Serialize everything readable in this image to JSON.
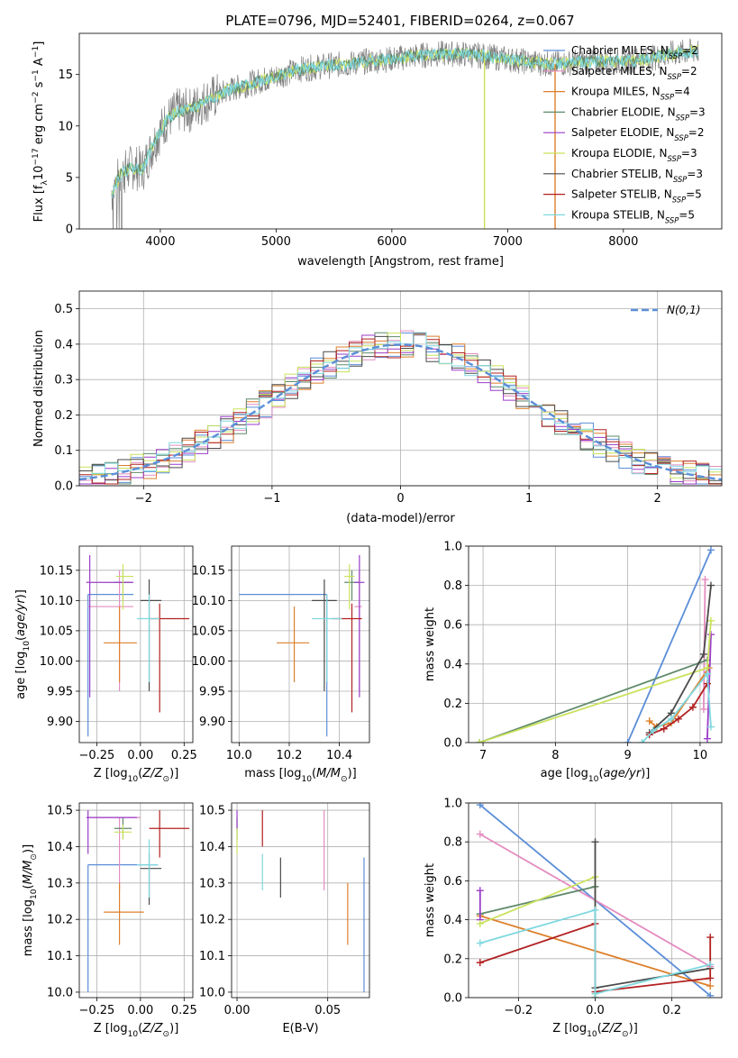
{
  "figure_title": "PLATE=0796, MJD=52401, FIBERID=0264, z=0.067",
  "colors": {
    "Chabrier MILES": "#5b8ed8",
    "Salpeter MILES": "#e48cc0",
    "Kroupa MILES": "#dd7f2b",
    "Chabrier ELODIE": "#5f8a6a",
    "Salpeter ELODIE": "#9a3cc8",
    "Kroupa ELODIE": "#c9e25c",
    "Chabrier STELIB": "#4a4a4a",
    "Salpeter STELIB": "#b22020",
    "Kroupa STELIB": "#7ed8df",
    "data": "#808080",
    "normal": "#5b8ed8"
  },
  "chart_data": [
    {
      "id": "spectrum",
      "type": "line",
      "xlabel": "wavelength [Angstrom, rest frame]",
      "ylabel": "Flux [f_λ 10^-17 erg cm^-2 s^-1 A^-1]",
      "xlim": [
        3300,
        8850
      ],
      "ylim": [
        0,
        19
      ],
      "xticks": [
        4000,
        5000,
        6000,
        7000,
        8000
      ],
      "yticks": [
        0,
        5,
        10,
        15
      ],
      "legend_position": "top-right",
      "legend": [
        {
          "series": "Chabrier MILES",
          "label": "Chabrier MILES, N",
          "sub": "SSP",
          "eq": "=2"
        },
        {
          "series": "Salpeter MILES",
          "label": "Salpeter MILES, N",
          "sub": "SSP",
          "eq": "=2"
        },
        {
          "series": "Kroupa MILES",
          "label": "Kroupa MILES, N",
          "sub": "SSP",
          "eq": "=4"
        },
        {
          "series": "Chabrier ELODIE",
          "label": "Chabrier ELODIE, N",
          "sub": "SSP",
          "eq": "=3"
        },
        {
          "series": "Salpeter ELODIE",
          "label": "Salpeter ELODIE, N",
          "sub": "SSP",
          "eq": "=2"
        },
        {
          "series": "Kroupa ELODIE",
          "label": "Kroupa ELODIE, N",
          "sub": "SSP",
          "eq": "=3"
        },
        {
          "series": "Chabrier STELIB",
          "label": "Chabrier STELIB, N",
          "sub": "SSP",
          "eq": "=3"
        },
        {
          "series": "Salpeter STELIB",
          "label": "Salpeter STELIB, N",
          "sub": "SSP",
          "eq": "=5"
        },
        {
          "series": "Kroupa STELIB",
          "label": "Kroupa STELIB, N",
          "sub": "SSP",
          "eq": "=5"
        }
      ],
      "continuum": [
        [
          3580,
          3.5
        ],
        [
          3650,
          5.2
        ],
        [
          3750,
          6.0
        ],
        [
          3850,
          5.8
        ],
        [
          3950,
          8.5
        ],
        [
          4050,
          10.5
        ],
        [
          4150,
          11.5
        ],
        [
          4250,
          11.5
        ],
        [
          4400,
          12.5
        ],
        [
          4600,
          13.5
        ],
        [
          4800,
          14.2
        ],
        [
          5000,
          14.8
        ],
        [
          5200,
          15.5
        ],
        [
          5400,
          15.8
        ],
        [
          5600,
          16.0
        ],
        [
          5800,
          16.3
        ],
        [
          6000,
          16.5
        ],
        [
          6200,
          16.8
        ],
        [
          6400,
          17.0
        ],
        [
          6600,
          17.0
        ],
        [
          6800,
          16.8
        ],
        [
          7000,
          16.5
        ],
        [
          7200,
          16.2
        ],
        [
          7400,
          16.0
        ],
        [
          7600,
          16.2
        ],
        [
          7800,
          16.3
        ],
        [
          8000,
          16.3
        ],
        [
          8200,
          16.5
        ],
        [
          8400,
          17.0
        ],
        [
          8650,
          17.3
        ]
      ]
    },
    {
      "id": "residuals",
      "type": "histogram",
      "xlabel": "(data-model)/error",
      "ylabel": "Normed distribution",
      "xlim": [
        -2.5,
        2.5
      ],
      "ylim": [
        0,
        0.55
      ],
      "xticks": [
        -2,
        -1,
        0,
        1,
        2
      ],
      "yticks": [
        0.0,
        0.1,
        0.2,
        0.3,
        0.4,
        0.5
      ],
      "bin_width": 0.1,
      "legend_position": "top-right",
      "legend_label": "N(0,1)",
      "seeds": [
        1,
        2,
        3,
        4,
        5,
        6,
        7,
        8,
        9
      ]
    },
    {
      "id": "age_vs_Z",
      "type": "errorbar",
      "xlabel": "Z [log10(Z/Z☉)]",
      "ylabel": "age [log10(age/yr)]",
      "xlim": [
        -0.35,
        0.3
      ],
      "ylim": [
        9.865,
        10.19
      ],
      "xticks": [
        -0.25,
        0.0,
        0.25
      ],
      "xticklabels": [
        "−0.25",
        "0.00",
        "0.25"
      ],
      "yticks": [
        9.9,
        9.95,
        10.0,
        10.05,
        10.1,
        10.15
      ],
      "points": [
        {
          "series": "Chabrier MILES",
          "x": -0.3,
          "y": 10.11,
          "xlo": -0.3,
          "xhi": -0.04,
          "ylo": 9.875,
          "yhi": 10.11
        },
        {
          "series": "Salpeter MILES",
          "x": -0.12,
          "y": 10.09,
          "xlo": -0.3,
          "xhi": -0.04,
          "ylo": 9.95,
          "yhi": 10.15
        },
        {
          "series": "Kroupa MILES",
          "x": -0.12,
          "y": 10.03,
          "xlo": -0.21,
          "xhi": -0.02,
          "ylo": 9.965,
          "yhi": 10.09
        },
        {
          "series": "Chabrier ELODIE",
          "x": -0.1,
          "y": 10.13,
          "xlo": -0.15,
          "xhi": -0.05,
          "ylo": 10.1,
          "yhi": 10.15
        },
        {
          "series": "Salpeter ELODIE",
          "x": -0.29,
          "y": 10.13,
          "xlo": -0.31,
          "xhi": -0.04,
          "ylo": 9.94,
          "yhi": 10.175
        },
        {
          "series": "Kroupa ELODIE",
          "x": -0.1,
          "y": 10.14,
          "xlo": -0.14,
          "xhi": -0.04,
          "ylo": 10.085,
          "yhi": 10.16
        },
        {
          "series": "Chabrier STELIB",
          "x": 0.05,
          "y": 10.1,
          "xlo": 0.0,
          "xhi": 0.12,
          "ylo": 9.95,
          "yhi": 10.135
        },
        {
          "series": "Salpeter STELIB",
          "x": 0.11,
          "y": 10.07,
          "xlo": 0.05,
          "xhi": 0.28,
          "ylo": 9.915,
          "yhi": 10.095
        },
        {
          "series": "Kroupa STELIB",
          "x": 0.05,
          "y": 10.07,
          "xlo": -0.02,
          "xhi": 0.11,
          "ylo": 9.965,
          "yhi": 10.11
        }
      ]
    },
    {
      "id": "age_vs_mass",
      "type": "errorbar",
      "xlabel": "mass [log10(M/M☉)]",
      "ylabel": "",
      "xlim": [
        9.97,
        10.52
      ],
      "ylim": [
        9.865,
        10.19
      ],
      "xticks": [
        10.0,
        10.2,
        10.4
      ],
      "xticklabels": [
        "10.0",
        "10.2",
        "10.4"
      ],
      "yticks": [
        9.9,
        9.95,
        10.0,
        10.05,
        10.1,
        10.15
      ],
      "points": [
        {
          "series": "Chabrier MILES",
          "x": 10.35,
          "y": 10.11,
          "xlo": 10.0,
          "xhi": 10.35,
          "ylo": 9.875,
          "yhi": 10.11
        },
        {
          "series": "Salpeter MILES",
          "x": 10.48,
          "y": 10.09,
          "xlo": 10.46,
          "xhi": 10.49,
          "ylo": 9.95,
          "yhi": 10.15
        },
        {
          "series": "Kroupa MILES",
          "x": 10.22,
          "y": 10.03,
          "xlo": 10.15,
          "xhi": 10.28,
          "ylo": 9.965,
          "yhi": 10.09
        },
        {
          "series": "Chabrier ELODIE",
          "x": 10.45,
          "y": 10.13,
          "xlo": 10.42,
          "xhi": 10.48,
          "ylo": 10.1,
          "yhi": 10.15
        },
        {
          "series": "Salpeter ELODIE",
          "x": 10.48,
          "y": 10.13,
          "xlo": 10.46,
          "xhi": 10.5,
          "ylo": 9.94,
          "yhi": 10.175
        },
        {
          "series": "Kroupa ELODIE",
          "x": 10.44,
          "y": 10.14,
          "xlo": 10.42,
          "xhi": 10.46,
          "ylo": 10.085,
          "yhi": 10.16
        },
        {
          "series": "Chabrier STELIB",
          "x": 10.34,
          "y": 10.1,
          "xlo": 10.29,
          "xhi": 10.39,
          "ylo": 9.95,
          "yhi": 10.135
        },
        {
          "series": "Salpeter STELIB",
          "x": 10.45,
          "y": 10.07,
          "xlo": 10.37,
          "xhi": 10.49,
          "ylo": 9.915,
          "yhi": 10.095
        },
        {
          "series": "Kroupa STELIB",
          "x": 10.35,
          "y": 10.07,
          "xlo": 10.29,
          "xhi": 10.41,
          "ylo": 9.965,
          "yhi": 10.11
        }
      ]
    },
    {
      "id": "weight_vs_age",
      "type": "line",
      "xlabel": "age [log10(age/yr)]",
      "ylabel": "mass weight",
      "xlim": [
        6.8,
        10.3
      ],
      "ylim": [
        0,
        1.0
      ],
      "xticks": [
        7,
        8,
        9,
        10
      ],
      "yticks": [
        0.0,
        0.2,
        0.4,
        0.6,
        0.8,
        1.0
      ],
      "series": [
        {
          "name": "Chabrier MILES",
          "points": [
            [
              9.0,
              0.0
            ],
            [
              10.15,
              0.98
            ]
          ]
        },
        {
          "name": "Salpeter MILES",
          "points": [
            [
              10.05,
              0.17
            ],
            [
              10.07,
              0.83
            ]
          ]
        },
        {
          "name": "Kroupa MILES",
          "points": [
            [
              9.3,
              0.11
            ],
            [
              9.4,
              0.08
            ],
            [
              9.6,
              0.1
            ],
            [
              10.12,
              0.38
            ]
          ]
        },
        {
          "name": "Chabrier ELODIE",
          "points": [
            [
              6.95,
              0.0
            ],
            [
              10.1,
              0.42
            ]
          ]
        },
        {
          "name": "Salpeter ELODIE",
          "points": [
            [
              10.1,
              0.02
            ],
            [
              10.15,
              0.55
            ]
          ]
        },
        {
          "name": "Kroupa ELODIE",
          "points": [
            [
              6.95,
              0.0
            ],
            [
              10.1,
              0.38
            ],
            [
              10.15,
              0.62
            ]
          ]
        },
        {
          "name": "Chabrier STELIB",
          "points": [
            [
              9.3,
              0.05
            ],
            [
              9.6,
              0.15
            ],
            [
              10.05,
              0.45
            ],
            [
              10.15,
              0.8
            ]
          ]
        },
        {
          "name": "Salpeter STELIB",
          "points": [
            [
              9.3,
              0.04
            ],
            [
              9.5,
              0.07
            ],
            [
              9.7,
              0.12
            ],
            [
              9.9,
              0.18
            ],
            [
              10.1,
              0.3
            ]
          ]
        },
        {
          "name": "Kroupa STELIB",
          "points": [
            [
              9.2,
              0.0
            ],
            [
              9.35,
              0.06
            ],
            [
              9.6,
              0.12
            ],
            [
              10.1,
              0.35
            ],
            [
              10.15,
              0.08
            ]
          ]
        }
      ]
    },
    {
      "id": "mass_vs_Z",
      "type": "errorbar",
      "xlabel": "Z [log10(Z/Z☉)]",
      "ylabel": "mass [log10(M/M☉)]",
      "xlim": [
        -0.35,
        0.3
      ],
      "ylim": [
        9.985,
        10.52
      ],
      "xticks": [
        -0.25,
        0.0,
        0.25
      ],
      "xticklabels": [
        "−0.25",
        "0.00",
        "0.25"
      ],
      "yticks": [
        10.0,
        10.1,
        10.2,
        10.3,
        10.4,
        10.5
      ],
      "points": [
        {
          "series": "Chabrier MILES",
          "x": -0.3,
          "y": 10.35,
          "xlo": -0.3,
          "xhi": 0.1,
          "ylo": 10.0,
          "yhi": 10.35
        },
        {
          "series": "Salpeter MILES",
          "x": -0.12,
          "y": 10.48,
          "xlo": -0.3,
          "xhi": 0.0,
          "ylo": 10.28,
          "yhi": 10.48
        },
        {
          "series": "Kroupa MILES",
          "x": -0.12,
          "y": 10.22,
          "xlo": -0.21,
          "xhi": 0.02,
          "ylo": 10.13,
          "yhi": 10.3
        },
        {
          "series": "Chabrier ELODIE",
          "x": -0.1,
          "y": 10.45,
          "xlo": -0.15,
          "xhi": -0.05,
          "ylo": 10.42,
          "yhi": 10.48
        },
        {
          "series": "Salpeter ELODIE",
          "x": -0.3,
          "y": 10.48,
          "xlo": -0.31,
          "xhi": -0.02,
          "ylo": 10.38,
          "yhi": 10.5
        },
        {
          "series": "Kroupa ELODIE",
          "x": -0.1,
          "y": 10.44,
          "xlo": -0.15,
          "xhi": -0.05,
          "ylo": 10.42,
          "yhi": 10.46
        },
        {
          "series": "Chabrier STELIB",
          "x": 0.05,
          "y": 10.34,
          "xlo": 0.0,
          "xhi": 0.12,
          "ylo": 10.24,
          "yhi": 10.38
        },
        {
          "series": "Salpeter STELIB",
          "x": 0.11,
          "y": 10.45,
          "xlo": 0.05,
          "xhi": 0.28,
          "ylo": 10.37,
          "yhi": 10.5
        },
        {
          "series": "Kroupa STELIB",
          "x": 0.05,
          "y": 10.35,
          "xlo": -0.02,
          "xhi": 0.1,
          "ylo": 10.26,
          "yhi": 10.42
        }
      ]
    },
    {
      "id": "mass_vs_ebv",
      "type": "errorbar",
      "xlabel": "E(B-V)",
      "ylabel": "",
      "xlim": [
        -0.003,
        0.073
      ],
      "ylim": [
        9.985,
        10.52
      ],
      "xticks": [
        0.0,
        0.05
      ],
      "xticklabels": [
        "0.00",
        "0.05"
      ],
      "yticks": [
        10.0,
        10.1,
        10.2,
        10.3,
        10.4,
        10.5
      ],
      "points": [
        {
          "series": "Chabrier MILES",
          "x": 0.07,
          "y": 10.35,
          "xlo": 0.07,
          "xhi": 0.07,
          "ylo": 10.0,
          "yhi": 10.37
        },
        {
          "series": "Salpeter MILES",
          "x": 0.048,
          "y": 10.48,
          "xlo": 0.048,
          "xhi": 0.048,
          "ylo": 10.28,
          "yhi": 10.5
        },
        {
          "series": "Kroupa MILES",
          "x": 0.061,
          "y": 10.22,
          "xlo": 0.061,
          "xhi": 0.061,
          "ylo": 10.13,
          "yhi": 10.3
        },
        {
          "series": "Chabrier ELODIE",
          "x": 0.0,
          "y": 10.45,
          "xlo": 0.0,
          "xhi": 0.0,
          "ylo": 10.42,
          "yhi": 10.48
        },
        {
          "series": "Salpeter ELODIE",
          "x": 0.0,
          "y": 10.49,
          "xlo": 0.0,
          "xhi": 0.0,
          "ylo": 10.45,
          "yhi": 10.5
        },
        {
          "series": "Kroupa ELODIE",
          "x": 0.0,
          "y": 10.42,
          "xlo": 0.0,
          "xhi": 0.0,
          "ylo": 10.38,
          "yhi": 10.45
        },
        {
          "series": "Chabrier STELIB",
          "x": 0.024,
          "y": 10.32,
          "xlo": 0.024,
          "xhi": 0.024,
          "ylo": 10.26,
          "yhi": 10.37
        },
        {
          "series": "Salpeter STELIB",
          "x": 0.014,
          "y": 10.45,
          "xlo": 0.014,
          "xhi": 0.014,
          "ylo": 10.4,
          "yhi": 10.5
        },
        {
          "series": "Kroupa STELIB",
          "x": 0.014,
          "y": 10.33,
          "xlo": 0.014,
          "xhi": 0.014,
          "ylo": 10.28,
          "yhi": 10.38
        }
      ]
    },
    {
      "id": "weight_vs_Z",
      "type": "line",
      "xlabel": "Z [log10(Z/Z☉)]",
      "ylabel": "mass weight",
      "xlim": [
        -0.33,
        0.33
      ],
      "ylim": [
        0,
        1.0
      ],
      "xticks": [
        -0.2,
        0.0,
        0.2
      ],
      "xticklabels": [
        "−0.2",
        "0.0",
        "0.2"
      ],
      "yticks": [
        0.0,
        0.2,
        0.4,
        0.6,
        0.8,
        1.0
      ],
      "series": [
        {
          "name": "Chabrier MILES",
          "points": [
            [
              -0.3,
              0.99
            ],
            [
              0.3,
              0.01
            ]
          ]
        },
        {
          "name": "Salpeter MILES",
          "points": [
            [
              -0.3,
              0.84
            ],
            [
              0.3,
              0.16
            ]
          ]
        },
        {
          "name": "Kroupa MILES",
          "points": [
            [
              -0.3,
              0.42
            ],
            [
              0.3,
              0.06
            ]
          ]
        },
        {
          "name": "Chabrier ELODIE",
          "points": [
            [
              -0.3,
              0.43
            ],
            [
              0.0,
              0.57
            ],
            [
              0.0,
              0.0
            ]
          ]
        },
        {
          "name": "Salpeter ELODIE",
          "points": [
            [
              -0.3,
              0.55
            ],
            [
              -0.3,
              0.4
            ]
          ]
        },
        {
          "name": "Kroupa ELODIE",
          "points": [
            [
              -0.3,
              0.38
            ],
            [
              0.0,
              0.62
            ],
            [
              0.0,
              0.02
            ]
          ]
        },
        {
          "name": "Chabrier STELIB",
          "points": [
            [
              0.0,
              0.8
            ],
            [
              0.0,
              0.05
            ],
            [
              0.3,
              0.15
            ]
          ]
        },
        {
          "name": "Salpeter STELIB",
          "points": [
            [
              -0.3,
              0.18
            ],
            [
              0.0,
              0.38
            ],
            [
              0.0,
              0.03
            ],
            [
              0.3,
              0.1
            ],
            [
              0.3,
              0.31
            ]
          ]
        },
        {
          "name": "Kroupa STELIB",
          "points": [
            [
              -0.3,
              0.28
            ],
            [
              0.0,
              0.45
            ],
            [
              0.0,
              0.02
            ],
            [
              0.3,
              0.17
            ]
          ]
        }
      ]
    }
  ]
}
